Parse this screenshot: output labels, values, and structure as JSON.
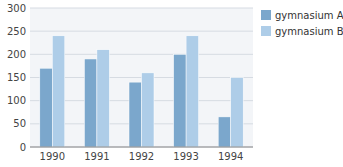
{
  "chart_data": {
    "type": "bar",
    "categories": [
      "1990",
      "1991",
      "1992",
      "1993",
      "1994"
    ],
    "series": [
      {
        "name": "gymnasium A",
        "color": "#7BA7CC",
        "values": [
          170,
          190,
          140,
          200,
          65
        ]
      },
      {
        "name": "gymnasium B",
        "color": "#AECDE8",
        "values": [
          240,
          210,
          160,
          240,
          150
        ]
      }
    ],
    "ylim": [
      0,
      300
    ],
    "yticks": [
      0,
      50,
      100,
      150,
      200,
      250,
      300
    ],
    "grid": true,
    "legend": "upper right"
  }
}
